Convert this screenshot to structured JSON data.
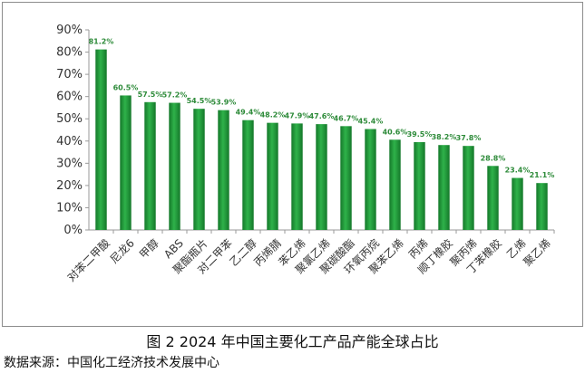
{
  "figure": {
    "caption": "图 2  2024 年中国主要化工产品产能全球占比",
    "source": "数据来源：中国化工经济技术发展中心"
  },
  "colors": {
    "bar": "#23a038",
    "bar_dark": "#14782a",
    "label": "#2e8b3a",
    "axis": "#9a9a9a"
  },
  "chart_data": {
    "type": "bar",
    "title": "",
    "xlabel": "",
    "ylabel": "",
    "ylim": [
      0,
      90
    ],
    "yticks": [
      "0%",
      "10%",
      "20%",
      "30%",
      "40%",
      "50%",
      "60%",
      "70%",
      "80%",
      "90%"
    ],
    "grid": false,
    "categories": [
      "对苯二甲酸",
      "尼龙6",
      "甲醇",
      "ABS",
      "聚酯瓶片",
      "对二甲苯",
      "乙二醇",
      "丙烯腈",
      "苯乙烯",
      "聚氯乙烯",
      "聚碳酸酯",
      "环氧丙烷",
      "聚苯乙烯",
      "丙烯",
      "顺丁橡胶",
      "聚丙烯",
      "丁苯橡胶",
      "乙烯",
      "聚乙烯"
    ],
    "values": [
      81.2,
      60.5,
      57.5,
      57.2,
      54.5,
      53.9,
      49.4,
      48.2,
      47.9,
      47.6,
      46.7,
      45.4,
      40.6,
      39.5,
      38.2,
      37.8,
      28.8,
      23.4,
      21.1
    ],
    "labels": [
      "81.2%",
      "60.5%",
      "57.5%",
      "57.2%",
      "54.5%",
      "53.9%",
      "49.4%",
      "48.2%",
      "47.9%",
      "47.6%",
      "46.7%",
      "45.4%",
      "40.6%",
      "39.5%",
      "38.2%",
      "37.8%",
      "28.8%",
      "23.4%",
      "21.1%"
    ]
  }
}
